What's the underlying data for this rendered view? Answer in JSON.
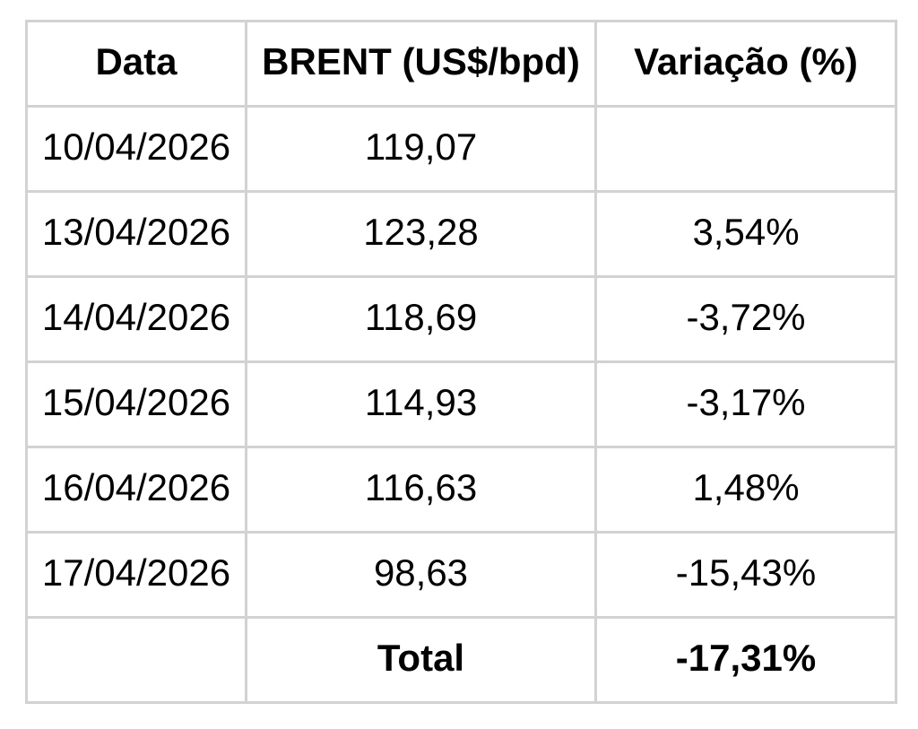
{
  "colors": {
    "background": "#ffffff",
    "border": "#d2d2d2",
    "text": "#000000"
  },
  "table": {
    "headers": [
      "Data",
      "BRENT (US$/bpd)",
      "Variação (%)"
    ],
    "rows": [
      [
        "10/04/2026",
        "119,07",
        ""
      ],
      [
        "13/04/2026",
        "123,28",
        "3,54%"
      ],
      [
        "14/04/2026",
        "118,69",
        "-3,72%"
      ],
      [
        "15/04/2026",
        "114,93",
        "-3,17%"
      ],
      [
        "16/04/2026",
        "116,63",
        "1,48%"
      ],
      [
        "17/04/2026",
        "98,63",
        "-15,43%"
      ]
    ],
    "total_row": [
      "",
      "Total",
      "-17,31%"
    ]
  },
  "chart_data": {
    "type": "table",
    "title": "",
    "columns": [
      "Data",
      "BRENT (US$/bpd)",
      "Variação (%)"
    ],
    "dates": [
      "10/04/2026",
      "13/04/2026",
      "14/04/2026",
      "15/04/2026",
      "16/04/2026",
      "17/04/2026"
    ],
    "brent_usd_bpd": [
      119.07,
      123.28,
      118.69,
      114.93,
      116.63,
      98.63
    ],
    "variation_pct": [
      null,
      3.54,
      -3.72,
      -3.17,
      1.48,
      -15.43
    ],
    "total_label": "Total",
    "total_variation_pct": -17.31,
    "number_format": "decimal-comma",
    "grid": true,
    "header_bold": true,
    "total_row_bold": true
  }
}
